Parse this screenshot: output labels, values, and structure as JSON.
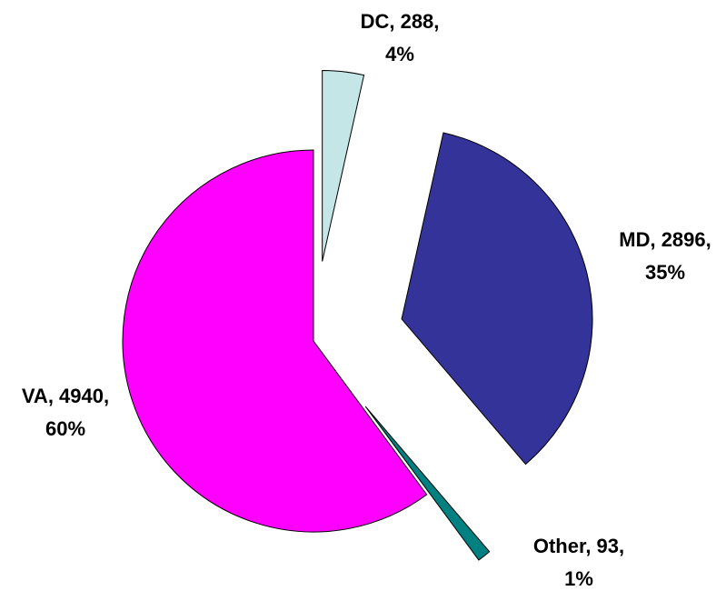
{
  "chart_data": {
    "type": "pie",
    "categories": [
      "DC",
      "MD",
      "Other",
      "VA"
    ],
    "values": [
      288,
      2896,
      93,
      4940
    ],
    "value_labels": [
      "DC, 288,",
      "MD, 2896,",
      "Other, 93,",
      "VA, 4940,"
    ],
    "percent_labels": [
      "4%",
      "35%",
      "1%",
      "60%"
    ],
    "colors": [
      "#c4e6e6",
      "#333399",
      "#008080",
      "#ff00ff"
    ]
  }
}
